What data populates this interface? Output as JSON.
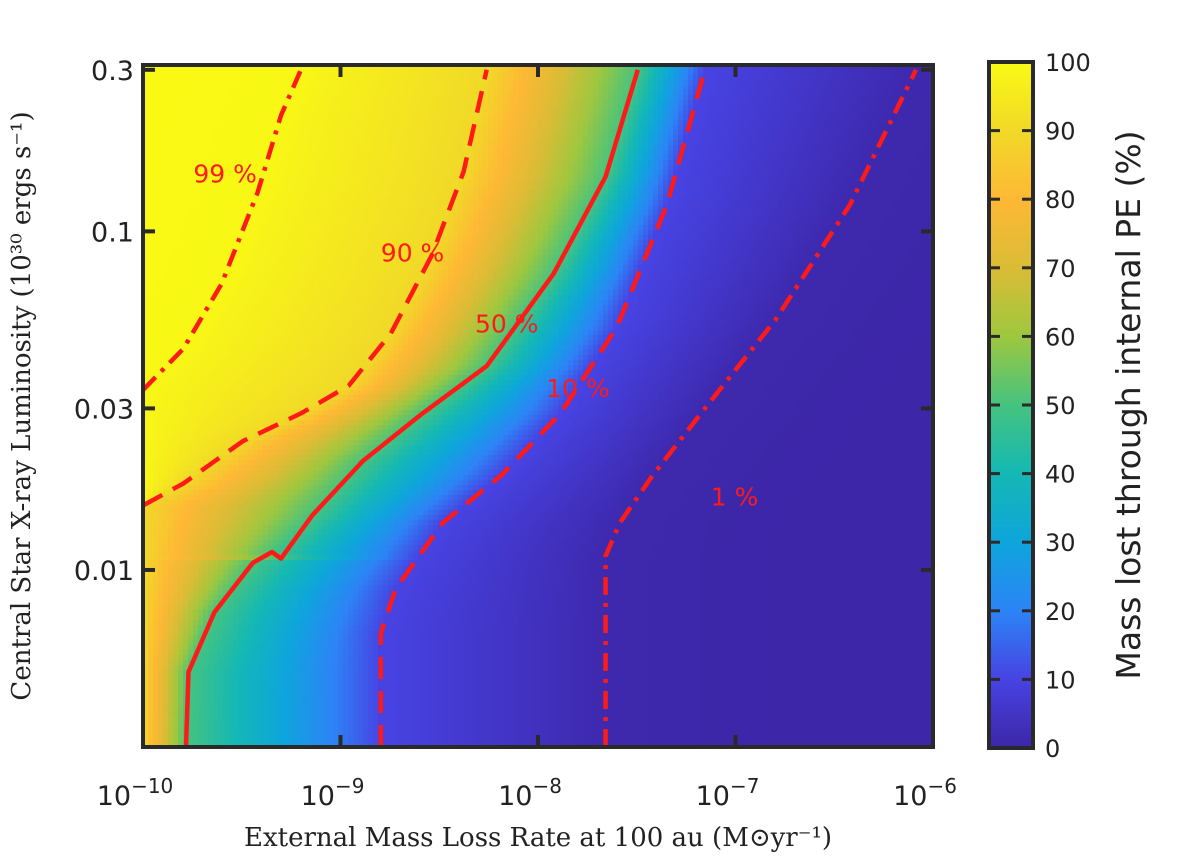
{
  "chart_data": {
    "type": "heatmap",
    "title": "",
    "xlabel": "External Mass Loss Rate at 100 au (M⊙yr⁻¹)",
    "ylabel": "Central Star X-ray Luminosity (10³⁰ ergs s⁻¹)",
    "xscale": "log",
    "yscale": "log",
    "xlim": [
      1e-10,
      1e-06
    ],
    "ylim": [
      0.003,
      0.31
    ],
    "x_ticks": [
      {
        "value": 1e-10,
        "base": "10",
        "exp": "-10"
      },
      {
        "value": 1e-09,
        "base": "10",
        "exp": "-9"
      },
      {
        "value": 1e-08,
        "base": "10",
        "exp": "-8"
      },
      {
        "value": 1e-07,
        "base": "10",
        "exp": "-7"
      },
      {
        "value": 1e-06,
        "base": "10",
        "exp": "-6"
      }
    ],
    "y_ticks": [
      {
        "value": 0.01,
        "label": "0.01"
      },
      {
        "value": 0.03,
        "label": "0.03"
      },
      {
        "value": 0.1,
        "label": "0.1"
      },
      {
        "value": 0.3,
        "label": "0.3"
      }
    ],
    "colorbar": {
      "label": "Mass lost through internal PE (%)",
      "min": 0,
      "max": 100,
      "ticks": [
        "0",
        "10",
        "20",
        "30",
        "40",
        "50",
        "60",
        "70",
        "80",
        "90",
        "100"
      ]
    },
    "contours": [
      {
        "level": 99,
        "label": "99 %",
        "style": "dashdot",
        "points": [
          [
            1e-10,
            0.034
          ],
          [
            1.6e-10,
            0.045
          ],
          [
            2.5e-10,
            0.07
          ],
          [
            3.8e-10,
            0.13
          ],
          [
            5e-10,
            0.22
          ],
          [
            6.3e-10,
            0.3
          ]
        ]
      },
      {
        "level": 90,
        "label": "90 %",
        "style": "dashed",
        "points": [
          [
            1e-10,
            0.0155
          ],
          [
            1.6e-10,
            0.018
          ],
          [
            3.2e-10,
            0.024
          ],
          [
            6.3e-10,
            0.029
          ],
          [
            1.1e-09,
            0.035
          ],
          [
            1.8e-09,
            0.05
          ],
          [
            2.9e-09,
            0.085
          ],
          [
            4.2e-09,
            0.15
          ],
          [
            5.5e-09,
            0.3
          ]
        ]
      },
      {
        "level": 50,
        "label": "50 %",
        "style": "solid",
        "points": [
          [
            1.65e-10,
            0.003
          ],
          [
            1.7e-10,
            0.005
          ],
          [
            2.3e-10,
            0.0075
          ],
          [
            3.6e-10,
            0.0105
          ],
          [
            4.5e-10,
            0.0113
          ],
          [
            5e-10,
            0.0108
          ],
          [
            7.2e-10,
            0.0145
          ],
          [
            1.3e-09,
            0.021
          ],
          [
            2.6e-09,
            0.029
          ],
          [
            5.5e-09,
            0.04
          ],
          [
            1.2e-08,
            0.075
          ],
          [
            2.2e-08,
            0.145
          ],
          [
            3.2e-08,
            0.3
          ]
        ]
      },
      {
        "level": 10,
        "label": "10 %",
        "style": "dashed",
        "points": [
          [
            1.6e-09,
            0.003
          ],
          [
            1.6e-09,
            0.0065
          ],
          [
            1.9e-09,
            0.0088
          ],
          [
            3.3e-09,
            0.0138
          ],
          [
            6.5e-09,
            0.019
          ],
          [
            1.3e-08,
            0.029
          ],
          [
            2.5e-08,
            0.052
          ],
          [
            4.5e-08,
            0.12
          ],
          [
            7e-08,
            0.3
          ]
        ]
      },
      {
        "level": 1,
        "label": "1 %",
        "style": "dashdot",
        "points": [
          [
            2.2e-08,
            0.003
          ],
          [
            2.2e-08,
            0.011
          ],
          [
            2.6e-08,
            0.0138
          ],
          [
            3.8e-08,
            0.019
          ],
          [
            7e-08,
            0.03
          ],
          [
            1.6e-07,
            0.055
          ],
          [
            3.8e-07,
            0.12
          ],
          [
            8.2e-07,
            0.3
          ]
        ]
      }
    ],
    "contour_labels": [
      {
        "text": "99 %",
        "x": 1.8e-10,
        "y": 0.148
      },
      {
        "text": "90 %",
        "x": 1.6e-09,
        "y": 0.0865
      },
      {
        "text": "50 %",
        "x": 4.8e-09,
        "y": 0.0535
      },
      {
        "text": "10 %",
        "x": 1.1e-08,
        "y": 0.0345
      },
      {
        "text": "1 %",
        "x": 7.5e-08,
        "y": 0.0165
      }
    ],
    "colors": {
      "contour": "#ff1a1a",
      "colormap": [
        "#3d26a8",
        "#4743e3",
        "#2c84f6",
        "#0ea5dc",
        "#14b8b4",
        "#45c37f",
        "#9ec73f",
        "#dbbc35",
        "#feb835",
        "#f1d928",
        "#f9fa14"
      ]
    }
  }
}
